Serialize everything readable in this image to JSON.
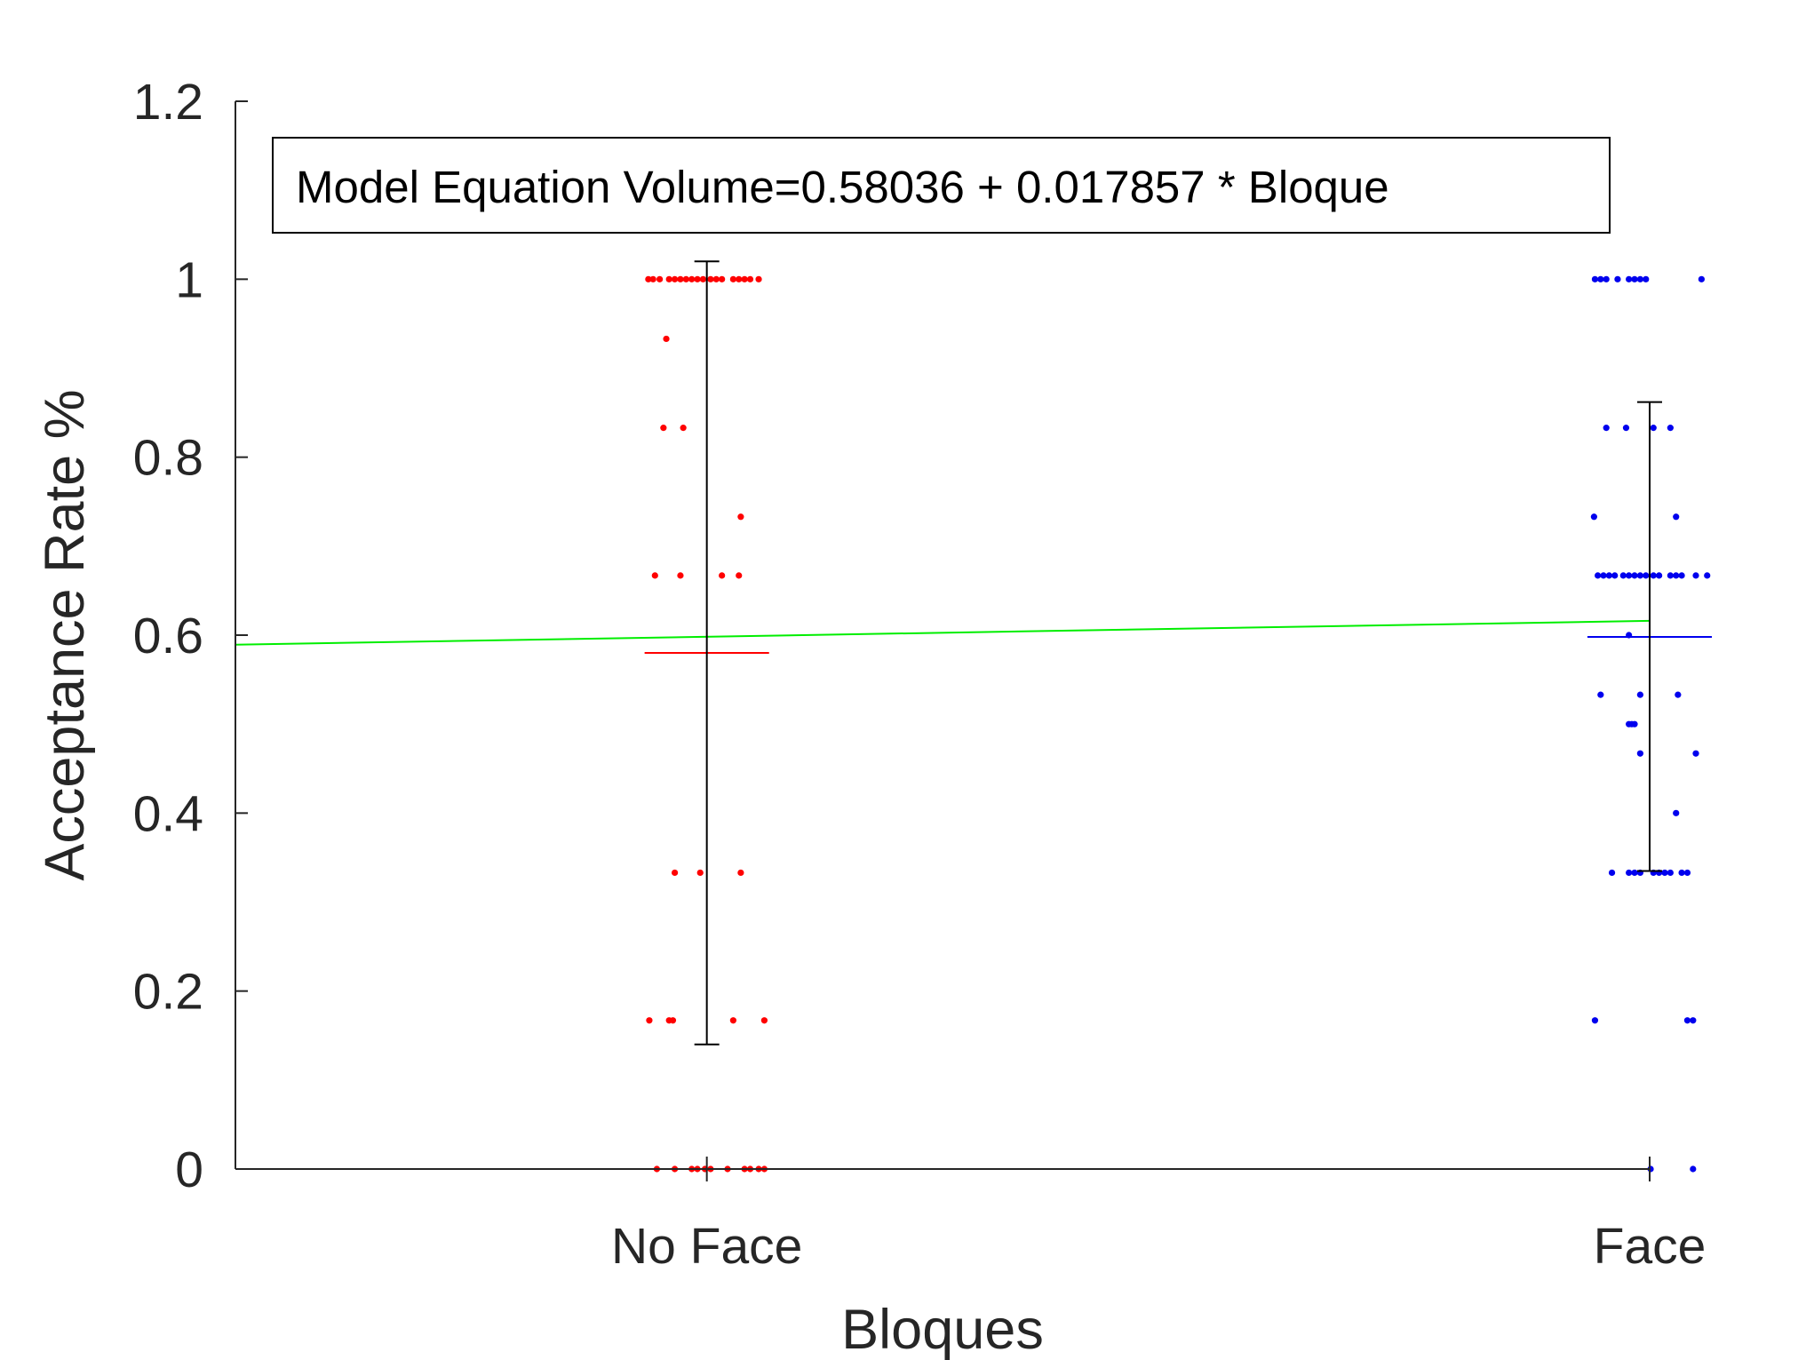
{
  "chart_data": {
    "type": "scatter",
    "title": "",
    "xlabel": "Bloques",
    "ylabel": "Acceptance Rate %",
    "ylim": [
      0,
      1.2
    ],
    "yticks": [
      "0",
      "0.2",
      "0.4",
      "0.6",
      "0.8",
      "1",
      "1.2"
    ],
    "ytick_values": [
      0,
      0.2,
      0.4,
      0.6,
      0.8,
      1,
      1.2
    ],
    "categories": [
      "No Face",
      "Face"
    ],
    "xlim": [
      0.5,
      2.0
    ],
    "grid": false,
    "annotation": "Model Equation Volume=0.58036 + 0.017857 * Bloque",
    "fit_line": {
      "intercept": 0.58036,
      "slope": 0.017857,
      "color": "#00ee00"
    },
    "series": [
      {
        "category": "No Face",
        "color": "#ff0000",
        "mean": 0.58,
        "error_bar": [
          0.14,
          1.02
        ],
        "points": [
          {
            "dx": -0.062,
            "y": 1
          },
          {
            "dx": -0.057,
            "y": 1
          },
          {
            "dx": -0.05,
            "y": 1
          },
          {
            "dx": -0.04,
            "y": 1
          },
          {
            "dx": -0.034,
            "y": 1
          },
          {
            "dx": -0.028,
            "y": 1
          },
          {
            "dx": -0.022,
            "y": 1
          },
          {
            "dx": -0.016,
            "y": 1
          },
          {
            "dx": -0.01,
            "y": 1
          },
          {
            "dx": -0.004,
            "y": 1
          },
          {
            "dx": 0.004,
            "y": 1
          },
          {
            "dx": 0.01,
            "y": 1
          },
          {
            "dx": 0.016,
            "y": 1
          },
          {
            "dx": 0.028,
            "y": 1
          },
          {
            "dx": 0.034,
            "y": 1
          },
          {
            "dx": 0.04,
            "y": 1
          },
          {
            "dx": 0.046,
            "y": 1
          },
          {
            "dx": 0.055,
            "y": 1
          },
          {
            "dx": -0.043,
            "y": 0.933
          },
          {
            "dx": -0.046,
            "y": 0.833
          },
          {
            "dx": -0.025,
            "y": 0.833
          },
          {
            "dx": 0.036,
            "y": 0.733
          },
          {
            "dx": -0.055,
            "y": 0.667
          },
          {
            "dx": -0.028,
            "y": 0.667
          },
          {
            "dx": 0.016,
            "y": 0.667
          },
          {
            "dx": 0.034,
            "y": 0.667
          },
          {
            "dx": -0.034,
            "y": 0.333
          },
          {
            "dx": -0.007,
            "y": 0.333
          },
          {
            "dx": 0.036,
            "y": 0.333
          },
          {
            "dx": -0.061,
            "y": 0.167
          },
          {
            "dx": -0.04,
            "y": 0.167
          },
          {
            "dx": -0.036,
            "y": 0.167
          },
          {
            "dx": 0.028,
            "y": 0.167
          },
          {
            "dx": 0.061,
            "y": 0.167
          },
          {
            "dx": -0.053,
            "y": 0
          },
          {
            "dx": -0.034,
            "y": 0
          },
          {
            "dx": -0.016,
            "y": 0
          },
          {
            "dx": -0.01,
            "y": 0
          },
          {
            "dx": -0.002,
            "y": 0
          },
          {
            "dx": 0.004,
            "y": 0
          },
          {
            "dx": 0.022,
            "y": 0
          },
          {
            "dx": 0.04,
            "y": 0
          },
          {
            "dx": 0.046,
            "y": 0
          },
          {
            "dx": 0.055,
            "y": 0
          },
          {
            "dx": 0.061,
            "y": 0
          }
        ]
      },
      {
        "category": "Face",
        "color": "#0000ee",
        "mean": 0.598,
        "error_bar": [
          0.335,
          0.862
        ],
        "points": [
          {
            "dx": -0.058,
            "y": 1
          },
          {
            "dx": -0.052,
            "y": 1
          },
          {
            "dx": -0.046,
            "y": 1
          },
          {
            "dx": -0.034,
            "y": 1
          },
          {
            "dx": -0.022,
            "y": 1
          },
          {
            "dx": -0.016,
            "y": 1
          },
          {
            "dx": -0.01,
            "y": 1
          },
          {
            "dx": -0.004,
            "y": 1
          },
          {
            "dx": 0.055,
            "y": 1
          },
          {
            "dx": -0.046,
            "y": 0.833
          },
          {
            "dx": -0.025,
            "y": 0.833
          },
          {
            "dx": 0.004,
            "y": 0.833
          },
          {
            "dx": 0.022,
            "y": 0.833
          },
          {
            "dx": -0.059,
            "y": 0.733
          },
          {
            "dx": 0.028,
            "y": 0.733
          },
          {
            "dx": -0.055,
            "y": 0.667
          },
          {
            "dx": -0.049,
            "y": 0.667
          },
          {
            "dx": -0.043,
            "y": 0.667
          },
          {
            "dx": -0.037,
            "y": 0.667
          },
          {
            "dx": -0.028,
            "y": 0.667
          },
          {
            "dx": -0.022,
            "y": 0.667
          },
          {
            "dx": -0.016,
            "y": 0.667
          },
          {
            "dx": -0.01,
            "y": 0.667
          },
          {
            "dx": -0.004,
            "y": 0.667
          },
          {
            "dx": 0.004,
            "y": 0.667
          },
          {
            "dx": 0.01,
            "y": 0.667
          },
          {
            "dx": 0.022,
            "y": 0.667
          },
          {
            "dx": 0.028,
            "y": 0.667
          },
          {
            "dx": 0.034,
            "y": 0.667
          },
          {
            "dx": 0.049,
            "y": 0.667
          },
          {
            "dx": 0.061,
            "y": 0.667
          },
          {
            "dx": -0.022,
            "y": 0.6
          },
          {
            "dx": -0.052,
            "y": 0.533
          },
          {
            "dx": -0.01,
            "y": 0.533
          },
          {
            "dx": 0.03,
            "y": 0.533
          },
          {
            "dx": -0.022,
            "y": 0.5
          },
          {
            "dx": -0.019,
            "y": 0.5
          },
          {
            "dx": -0.016,
            "y": 0.5
          },
          {
            "dx": -0.01,
            "y": 0.467
          },
          {
            "dx": 0.049,
            "y": 0.467
          },
          {
            "dx": 0.028,
            "y": 0.4
          },
          {
            "dx": -0.04,
            "y": 0.333
          },
          {
            "dx": -0.022,
            "y": 0.333
          },
          {
            "dx": -0.016,
            "y": 0.333
          },
          {
            "dx": -0.01,
            "y": 0.333
          },
          {
            "dx": 0.004,
            "y": 0.333
          },
          {
            "dx": 0.01,
            "y": 0.333
          },
          {
            "dx": 0.016,
            "y": 0.333
          },
          {
            "dx": 0.022,
            "y": 0.333
          },
          {
            "dx": 0.034,
            "y": 0.333
          },
          {
            "dx": 0.04,
            "y": 0.333
          },
          {
            "dx": -0.058,
            "y": 0.167
          },
          {
            "dx": 0.04,
            "y": 0.167
          },
          {
            "dx": 0.046,
            "y": 0.167
          },
          {
            "dx": 0.001,
            "y": 0
          },
          {
            "dx": 0.046,
            "y": 0
          }
        ]
      }
    ]
  }
}
